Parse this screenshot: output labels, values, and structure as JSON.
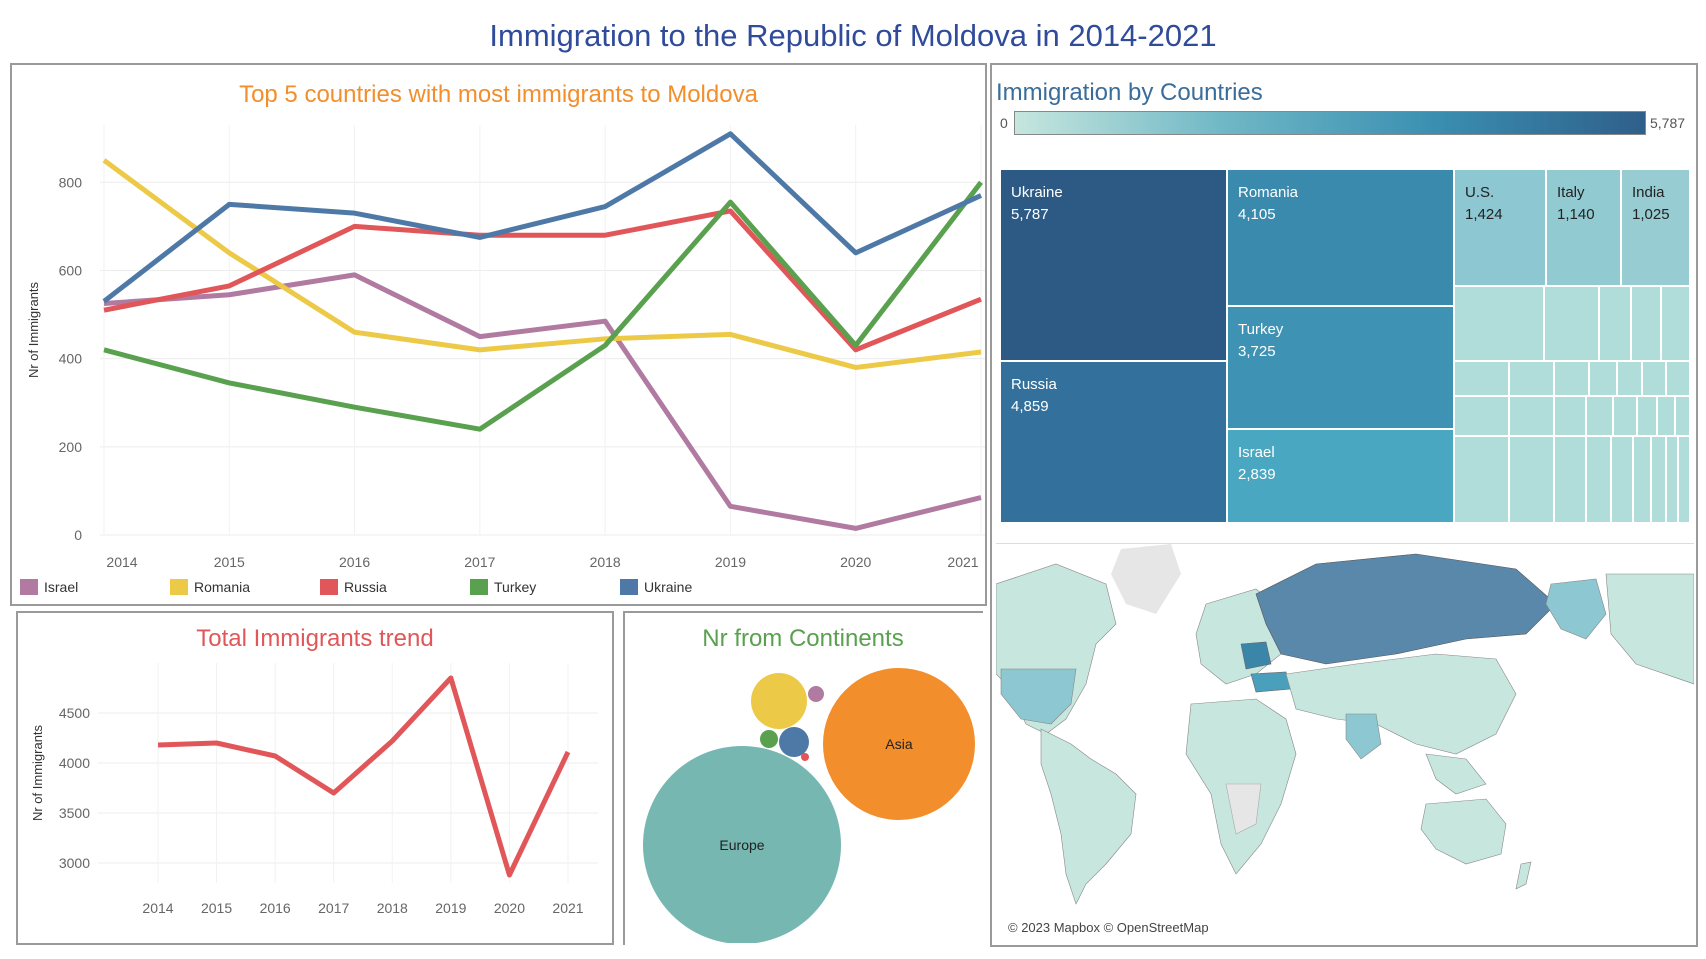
{
  "title": "Immigration to the Republic of Moldova in 2014-2021",
  "colors": {
    "Israel": "#b07aa1",
    "Romania": "#edc948",
    "Russia": "#e15759",
    "Turkey": "#59a14f",
    "Ukraine": "#4e79a7"
  },
  "chart_data": [
    {
      "type": "line",
      "title": "Top 5 countries with most immigrants to Moldova",
      "xlabel": "",
      "ylabel": "Nr of Immigrants",
      "x": [
        "2014",
        "2015",
        "2016",
        "2017",
        "2018",
        "2019",
        "2020",
        "2021"
      ],
      "y_ticks": [
        0,
        200,
        400,
        600,
        800
      ],
      "ylim": [
        0,
        930
      ],
      "series": [
        {
          "name": "Israel",
          "values": [
            525,
            545,
            590,
            450,
            485,
            65,
            15,
            85
          ]
        },
        {
          "name": "Romania",
          "values": [
            850,
            640,
            460,
            420,
            445,
            455,
            380,
            415
          ]
        },
        {
          "name": "Russia",
          "values": [
            510,
            565,
            700,
            680,
            680,
            735,
            420,
            535
          ]
        },
        {
          "name": "Turkey",
          "values": [
            420,
            345,
            290,
            240,
            430,
            755,
            430,
            800
          ]
        },
        {
          "name": "Ukraine",
          "values": [
            530,
            750,
            730,
            675,
            745,
            910,
            640,
            770
          ]
        }
      ],
      "legend": "bottom"
    },
    {
      "type": "line",
      "title": "Total Immigrants trend",
      "xlabel": "",
      "ylabel": "Nr of Immigrants",
      "x": [
        "2014",
        "2015",
        "2016",
        "2017",
        "2018",
        "2019",
        "2020",
        "2021"
      ],
      "y_ticks": [
        3000,
        3500,
        4000,
        4500
      ],
      "ylim": [
        2800,
        5000
      ],
      "values": [
        4180,
        4200,
        4070,
        3700,
        4220,
        4850,
        2880,
        4110
      ],
      "color": "#e15759"
    },
    {
      "type": "bubble",
      "title": "Nr from Continents",
      "bubbles": [
        {
          "label": "Europe",
          "color": "#76b7b2"
        },
        {
          "label": "Asia",
          "color": "#f28e2b"
        },
        {
          "label": "",
          "color": "#edc948"
        },
        {
          "label": "",
          "color": "#4e79a7"
        },
        {
          "label": "",
          "color": "#b07aa1"
        },
        {
          "label": "",
          "color": "#59a14f"
        },
        {
          "label": "",
          "color": "#e15759"
        }
      ]
    },
    {
      "type": "treemap",
      "title": "Immigration by Countries",
      "scale_min": "0",
      "scale_max": "5,787",
      "cells": [
        {
          "name": "Ukraine",
          "value": 5787,
          "value_label": "5,787"
        },
        {
          "name": "Russia",
          "value": 4859,
          "value_label": "4,859"
        },
        {
          "name": "Romania",
          "value": 4105,
          "value_label": "4,105"
        },
        {
          "name": "Turkey",
          "value": 3725,
          "value_label": "3,725"
        },
        {
          "name": "Israel",
          "value": 2839,
          "value_label": "2,839"
        },
        {
          "name": "U.S.",
          "value": 1424,
          "value_label": "1,424"
        },
        {
          "name": "Italy",
          "value": 1140,
          "value_label": "1,140"
        },
        {
          "name": "India",
          "value": 1025,
          "value_label": "1,025"
        }
      ]
    }
  ],
  "map": {
    "attribution": "© 2023 Mapbox © OpenStreetMap"
  }
}
